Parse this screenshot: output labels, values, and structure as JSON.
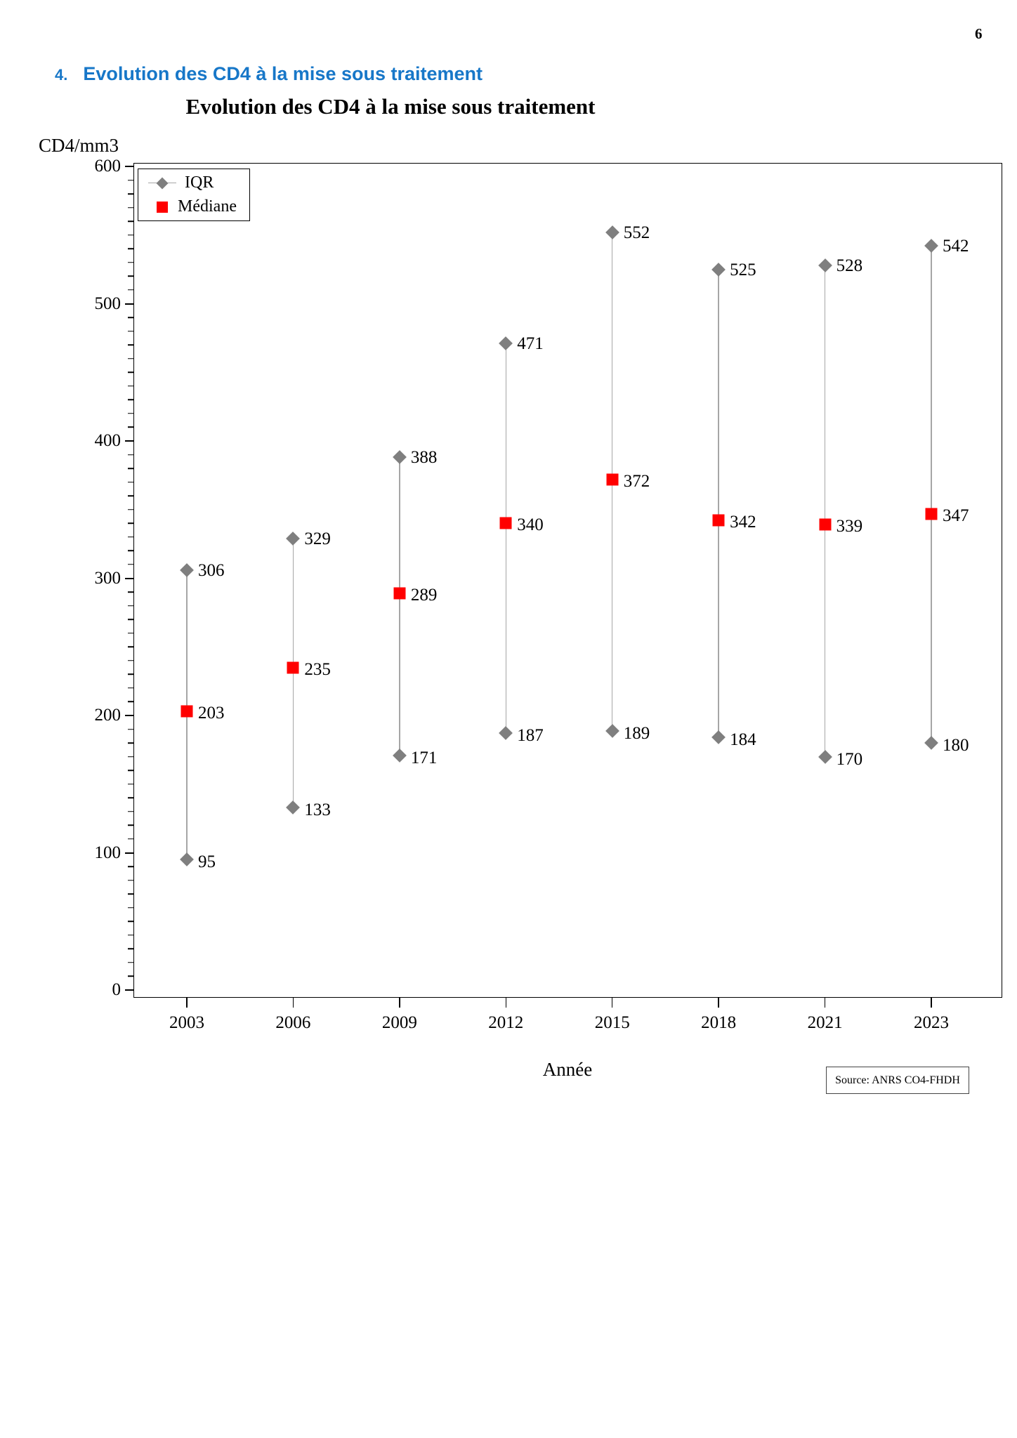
{
  "page": {
    "number": "6"
  },
  "heading": {
    "index": "4.",
    "text": "Evolution des CD4 à la mise sous traitement",
    "color": "#1777C8"
  },
  "chart_data": {
    "type": "scatter",
    "subtype": "median-with-iqr-range",
    "title": "Evolution des CD4 à la mise sous traitement",
    "categories": [
      "2003",
      "2006",
      "2009",
      "2012",
      "2015",
      "2018",
      "2021",
      "2023"
    ],
    "series": [
      {
        "name": "IQR upper",
        "marker": "diamond",
        "color": "#7F7F7F",
        "values": [
          306,
          329,
          388,
          471,
          552,
          525,
          528,
          542
        ]
      },
      {
        "name": "Médiane",
        "marker": "square",
        "color": "#FF0000",
        "values": [
          203,
          235,
          289,
          340,
          372,
          342,
          339,
          347
        ]
      },
      {
        "name": "IQR lower",
        "marker": "diamond",
        "color": "#7F7F7F",
        "values": [
          95,
          133,
          171,
          187,
          189,
          184,
          170,
          180
        ]
      }
    ],
    "xlabel": "Année",
    "ylabel": "CD4/mm3",
    "ylim": [
      0,
      600
    ],
    "y_major_tick": 100,
    "y_minor_tick": 10,
    "grid": false,
    "legend_position": "top-left",
    "legend": [
      {
        "label": "IQR",
        "marker": "diamond-on-line",
        "color": "#7F7F7F"
      },
      {
        "label": "Médiane",
        "marker": "square",
        "color": "#FF0000"
      }
    ],
    "source": "Source: ANRS CO4-FHDH"
  }
}
